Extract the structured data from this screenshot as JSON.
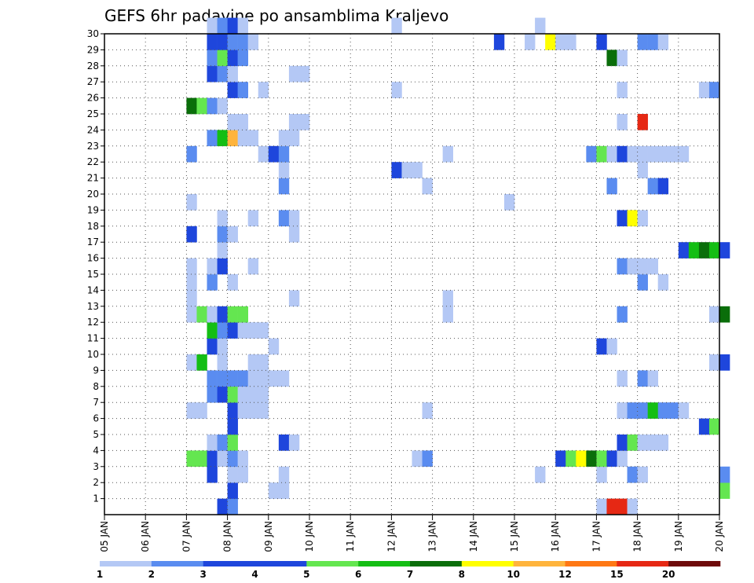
{
  "chart_data": {
    "type": "heatmap",
    "title": "GEFS 6hr padavine po ansamblima Kraljevo",
    "x_tick_labels": [
      "05 JAN",
      "06 JAN",
      "07 JAN",
      "08 JAN",
      "09 JAN",
      "10 JAN",
      "11 JAN",
      "12 JAN",
      "13 JAN",
      "14 JAN",
      "15 JAN",
      "16 JAN",
      "17 JAN",
      "18 JAN",
      "19 JAN",
      "20 JAN"
    ],
    "y_tick_labels": [
      "1",
      "2",
      "3",
      "4",
      "5",
      "6",
      "7",
      "8",
      "9",
      "10",
      "11",
      "12",
      "13",
      "14",
      "15",
      "16",
      "17",
      "18",
      "19",
      "20",
      "21",
      "22",
      "23",
      "24",
      "25",
      "26",
      "27",
      "28",
      "29",
      "30"
    ],
    "x_range": [
      "05 JAN 00Z",
      "20 JAN 00Z"
    ],
    "y_range": [
      0,
      30
    ],
    "time_step_hours": 6,
    "grid": "dotted",
    "legend_placement": "bottom",
    "legend": {
      "labels": [
        "1",
        "2",
        "3",
        "4",
        "5",
        "6",
        "7",
        "8",
        "10",
        "12",
        "15",
        "20"
      ],
      "colors": [
        "#b4c8f5",
        "#5a8cf0",
        "#1e46dc",
        "#1e46dc",
        "#64e650",
        "#14be14",
        "#0a6e0a",
        "#ffff00",
        "#ffb43c",
        "#ff7814",
        "#e62814",
        "#6e0a0a"
      ]
    },
    "ensemble_members": {
      "0": {
        "07 JAN 18Z": 3,
        "08 JAN 00Z": 2,
        "17 JAN 00Z": 1,
        "17 JAN 06Z": 15,
        "17 JAN 12Z": 15,
        "17 JAN 18Z": 1
      },
      "1": {
        "08 JAN 00Z": 3,
        "09 JAN 00Z": 1,
        "09 JAN 06Z": 1,
        "20 JAN 00Z": 5
      },
      "2": {
        "07 JAN 12Z": 3,
        "08 JAN 00Z": 1,
        "08 JAN 06Z": 1,
        "09 JAN 06Z": 1,
        "15 JAN 12Z": 1,
        "17 JAN 00Z": 1,
        "17 JAN 18Z": 2,
        "18 JAN 00Z": 1,
        "20 JAN 00Z": 2
      },
      "3": {
        "07 JAN 00Z": 5,
        "07 JAN 06Z": 5,
        "07 JAN 12Z": 3,
        "07 JAN 18Z": 1,
        "08 JAN 00Z": 2,
        "08 JAN 06Z": 1,
        "12 JAN 12Z": 1,
        "12 JAN 18Z": 2,
        "16 JAN 00Z": 3,
        "16 JAN 06Z": 5,
        "16 JAN 12Z": 8,
        "16 JAN 18Z": 7,
        "17 JAN 00Z": 5,
        "17 JAN 06Z": 3,
        "17 JAN 12Z": 1
      },
      "4": {
        "07 JAN 12Z": 1,
        "07 JAN 18Z": 2,
        "08 JAN 00Z": 5,
        "09 JAN 06Z": 3,
        "09 JAN 12Z": 1,
        "17 JAN 12Z": 3,
        "17 JAN 18Z": 5,
        "18 JAN 00Z": 1,
        "18 JAN 06Z": 1,
        "18 JAN 12Z": 1
      },
      "5": {
        "08 JAN 00Z": 3,
        "19 JAN 12Z": 3,
        "19 JAN 18Z": 5
      },
      "6": {
        "07 JAN 00Z": 1,
        "07 JAN 06Z": 1,
        "08 JAN 00Z": 3,
        "08 JAN 06Z": 1,
        "08 JAN 12Z": 1,
        "08 JAN 18Z": 1,
        "12 JAN 18Z": 1,
        "17 JAN 12Z": 1,
        "17 JAN 18Z": 2,
        "18 JAN 00Z": 2,
        "18 JAN 06Z": 6,
        "18 JAN 12Z": 2,
        "18 JAN 18Z": 2,
        "19 JAN 00Z": 1
      },
      "7": {
        "07 JAN 12Z": 2,
        "07 JAN 18Z": 3,
        "08 JAN 00Z": 5,
        "08 JAN 06Z": 1,
        "08 JAN 12Z": 1,
        "08 JAN 18Z": 1
      },
      "8": {
        "07 JAN 12Z": 2,
        "07 JAN 18Z": 2,
        "08 JAN 00Z": 2,
        "08 JAN 06Z": 2,
        "08 JAN 12Z": 1,
        "08 JAN 18Z": 1,
        "09 JAN 00Z": 1,
        "09 JAN 06Z": 1,
        "17 JAN 12Z": 1,
        "18 JAN 00Z": 2,
        "18 JAN 06Z": 1
      },
      "9": {
        "07 JAN 00Z": 1,
        "07 JAN 06Z": 6,
        "07 JAN 18Z": 1,
        "08 JAN 12Z": 1,
        "08 JAN 18Z": 1,
        "19 JAN 18Z": 1,
        "20 JAN 00Z": 3
      },
      "10": {
        "07 JAN 12Z": 3,
        "07 JAN 18Z": 1,
        "09 JAN 00Z": 1,
        "17 JAN 00Z": 3,
        "17 JAN 06Z": 1
      },
      "11": {
        "07 JAN 12Z": 6,
        "07 JAN 18Z": 2,
        "08 JAN 00Z": 3,
        "08 JAN 06Z": 1,
        "08 JAN 12Z": 1,
        "08 JAN 18Z": 1
      },
      "12": {
        "07 JAN 00Z": 1,
        "07 JAN 06Z": 5,
        "07 JAN 12Z": 1,
        "07 JAN 18Z": 3,
        "08 JAN 00Z": 5,
        "08 JAN 06Z": 5,
        "13 JAN 06Z": 1,
        "17 JAN 12Z": 2,
        "19 JAN 18Z": 1,
        "20 JAN 00Z": 7
      },
      "13": {
        "07 JAN 00Z": 1,
        "09 JAN 12Z": 1,
        "13 JAN 06Z": 1
      },
      "14": {
        "07 JAN 00Z": 1,
        "07 JAN 12Z": 2,
        "08 JAN 00Z": 1,
        "18 JAN 00Z": 2,
        "18 JAN 12Z": 1
      },
      "15": {
        "07 JAN 00Z": 1,
        "07 JAN 12Z": 1,
        "07 JAN 18Z": 3,
        "08 JAN 12Z": 1,
        "17 JAN 12Z": 2,
        "17 JAN 18Z": 1,
        "18 JAN 00Z": 1,
        "18 JAN 06Z": 1
      },
      "16": {
        "07 JAN 18Z": 1,
        "19 JAN 00Z": 3,
        "19 JAN 06Z": 6,
        "19 JAN 12Z": 7,
        "19 JAN 18Z": 6,
        "20 JAN 00Z": 3
      },
      "17": {
        "07 JAN 00Z": 3,
        "07 JAN 18Z": 2,
        "08 JAN 00Z": 1,
        "09 JAN 12Z": 1
      },
      "18": {
        "07 JAN 18Z": 1,
        "08 JAN 12Z": 1,
        "09 JAN 06Z": 2,
        "09 JAN 12Z": 1,
        "17 JAN 12Z": 3,
        "17 JAN 18Z": 8,
        "18 JAN 00Z": 1
      },
      "19": {
        "07 JAN 00Z": 1,
        "14 JAN 18Z": 1
      },
      "20": {
        "09 JAN 06Z": 2,
        "12 JAN 18Z": 1,
        "17 JAN 06Z": 2,
        "18 JAN 06Z": 2,
        "18 JAN 12Z": 3
      },
      "21": {
        "09 JAN 06Z": 1,
        "12 JAN 00Z": 3,
        "12 JAN 06Z": 1,
        "12 JAN 12Z": 1,
        "18 JAN 00Z": 1
      },
      "22": {
        "07 JAN 00Z": 2,
        "08 JAN 18Z": 1,
        "09 JAN 00Z": 3,
        "09 JAN 06Z": 2,
        "13 JAN 06Z": 1,
        "16 JAN 18Z": 2,
        "17 JAN 00Z": 5,
        "17 JAN 06Z": 1,
        "17 JAN 12Z": 3,
        "17 JAN 18Z": 1,
        "18 JAN 00Z": 1,
        "18 JAN 06Z": 1,
        "18 JAN 12Z": 1,
        "18 JAN 18Z": 1,
        "19 JAN 00Z": 1
      },
      "23": {
        "07 JAN 12Z": 2,
        "07 JAN 18Z": 6,
        "08 JAN 00Z": 10,
        "08 JAN 06Z": 1,
        "08 JAN 12Z": 1,
        "09 JAN 06Z": 1,
        "09 JAN 12Z": 1
      },
      "24": {
        "08 JAN 00Z": 1,
        "08 JAN 06Z": 1,
        "09 JAN 12Z": 1,
        "09 JAN 18Z": 1,
        "17 JAN 12Z": 1,
        "18 JAN 00Z": 15
      },
      "25": {
        "07 JAN 00Z": 7,
        "07 JAN 06Z": 5,
        "07 JAN 12Z": 2,
        "07 JAN 18Z": 1
      },
      "26": {
        "08 JAN 00Z": 3,
        "08 JAN 06Z": 2,
        "08 JAN 18Z": 1,
        "12 JAN 00Z": 1,
        "17 JAN 12Z": 1,
        "19 JAN 12Z": 1,
        "19 JAN 18Z": 2
      },
      "27": {
        "07 JAN 12Z": 3,
        "07 JAN 18Z": 2,
        "08 JAN 00Z": 1,
        "09 JAN 12Z": 1,
        "09 JAN 18Z": 1
      },
      "28": {
        "07 JAN 12Z": 2,
        "07 JAN 18Z": 5,
        "08 JAN 00Z": 3,
        "08 JAN 06Z": 2,
        "17 JAN 06Z": 7,
        "17 JAN 12Z": 1
      },
      "29": {
        "07 JAN 12Z": 3,
        "07 JAN 18Z": 3,
        "08 JAN 00Z": 2,
        "08 JAN 06Z": 2,
        "08 JAN 12Z": 1,
        "14 JAN 12Z": 3,
        "15 JAN 06Z": 1,
        "15 JAN 18Z": 8,
        "16 JAN 00Z": 1,
        "16 JAN 06Z": 1,
        "17 JAN 00Z": 3,
        "18 JAN 00Z": 2,
        "18 JAN 06Z": 2,
        "18 JAN 12Z": 1
      },
      "30": {
        "07 JAN 12Z": 1,
        "07 JAN 18Z": 2,
        "08 JAN 00Z": 3,
        "08 JAN 06Z": 1,
        "12 JAN 00Z": 1,
        "15 JAN 12Z": 1
      }
    }
  }
}
